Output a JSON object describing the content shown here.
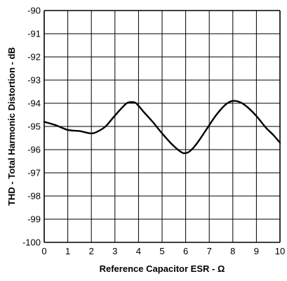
{
  "chart_data": {
    "type": "line",
    "title": "",
    "xlabel": "Reference Capacitor ESR - Ω",
    "ylabel": "THD - Total Harmonic Distortion - dB",
    "xlim": [
      0,
      10
    ],
    "ylim": [
      -100,
      -90
    ],
    "x_ticks": [
      0,
      1,
      2,
      3,
      4,
      5,
      6,
      7,
      8,
      9,
      10
    ],
    "y_ticks": [
      -90,
      -91,
      -92,
      -93,
      -94,
      -95,
      -96,
      -97,
      -98,
      -99,
      -100
    ],
    "x_tick_labels": [
      "0",
      "1",
      "2",
      "3",
      "4",
      "5",
      "6",
      "7",
      "8",
      "9",
      "10"
    ],
    "y_tick_labels": [
      "-90",
      "-91",
      "-92",
      "-93",
      "-94",
      "-95",
      "-96",
      "-97",
      "-98",
      "-99",
      "-100"
    ],
    "grid": true,
    "series": [
      {
        "x": [
          0,
          0.5,
          1,
          1.5,
          2,
          2.3,
          2.6,
          2.9,
          3.2,
          3.5,
          3.7,
          3.9,
          4.2,
          4.6,
          5.0,
          5.4,
          5.8,
          6.0,
          6.2,
          6.5,
          6.9,
          7.3,
          7.7,
          8.0,
          8.3,
          8.6,
          9.0,
          9.4,
          9.7,
          10
        ],
        "y": [
          -94.8,
          -94.95,
          -95.15,
          -95.2,
          -95.3,
          -95.2,
          -95.0,
          -94.65,
          -94.3,
          -94.0,
          -93.95,
          -94.0,
          -94.35,
          -94.8,
          -95.3,
          -95.75,
          -96.1,
          -96.15,
          -96.05,
          -95.7,
          -95.1,
          -94.5,
          -94.05,
          -93.9,
          -93.95,
          -94.15,
          -94.55,
          -95.05,
          -95.35,
          -95.7
        ]
      }
    ]
  },
  "colors": {
    "line": "#000000",
    "grid": "#000000",
    "background": "#ffffff"
  }
}
